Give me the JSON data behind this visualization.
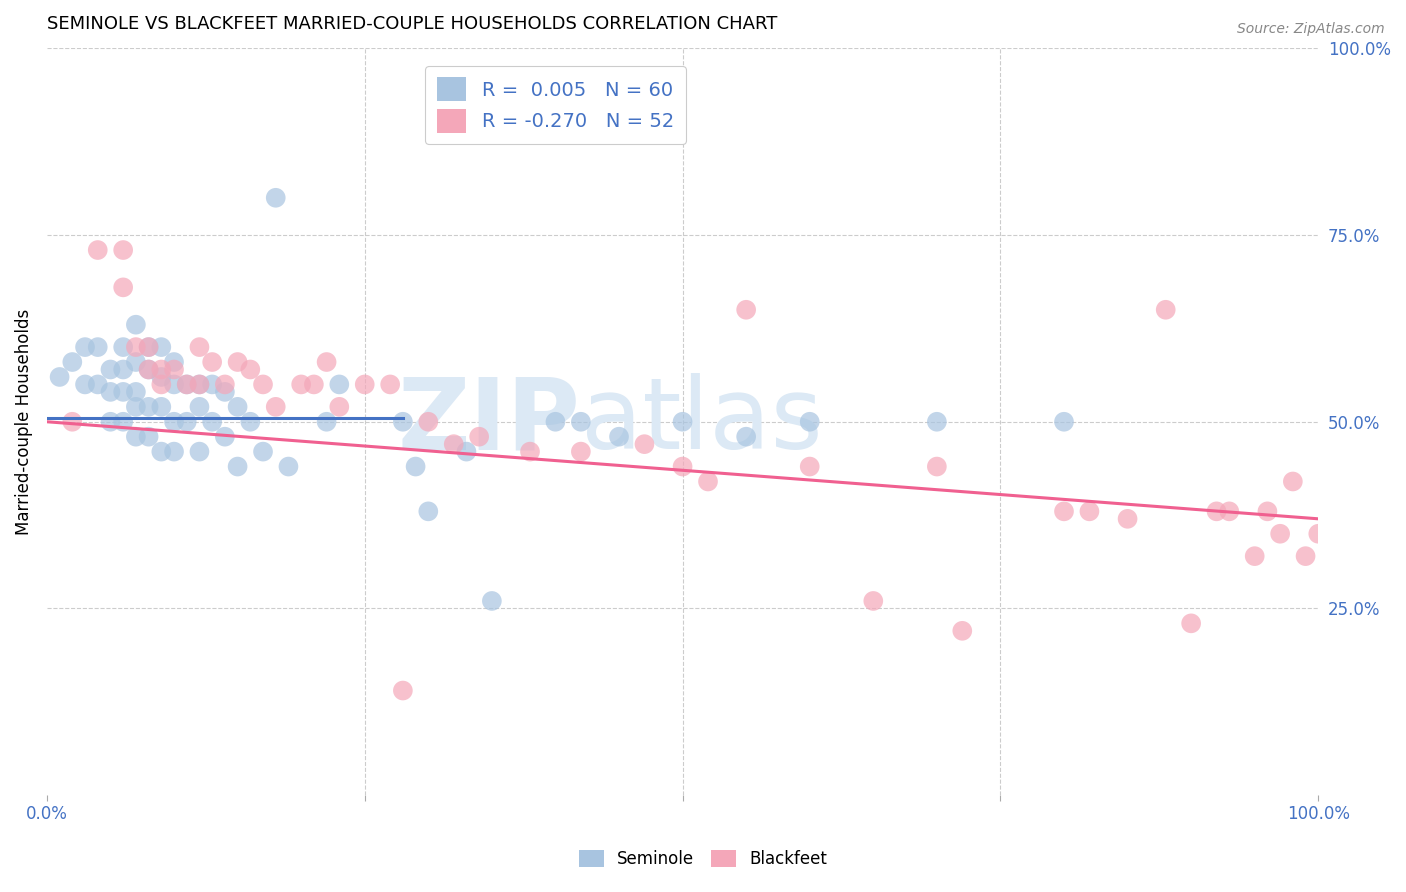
{
  "title": "SEMINOLE VS BLACKFEET MARRIED-COUPLE HOUSEHOLDS CORRELATION CHART",
  "source": "Source: ZipAtlas.com",
  "ylabel": "Married-couple Households",
  "xlim": [
    0,
    1
  ],
  "ylim": [
    0,
    1
  ],
  "xtick_positions": [
    0.0,
    0.25,
    0.5,
    0.75,
    1.0
  ],
  "xtick_labels": [
    "0.0%",
    "",
    "",
    "",
    "100.0%"
  ],
  "ytick_positions_right": [
    1.0,
    0.75,
    0.5,
    0.25
  ],
  "ytick_labels_right": [
    "100.0%",
    "75.0%",
    "50.0%",
    "25.0%"
  ],
  "seminole_R": "0.005",
  "seminole_N": "60",
  "blackfeet_R": "-0.270",
  "blackfeet_N": "52",
  "seminole_color": "#a8c4e0",
  "blackfeet_color": "#f4a7b9",
  "seminole_line_color": "#4472c4",
  "blackfeet_line_color": "#f06090",
  "watermark_zip": "ZIP",
  "watermark_atlas": "atlas",
  "watermark_color": "#dce9f5",
  "background_color": "#ffffff",
  "grid_color": "#cccccc",
  "seminole_x": [
    0.01,
    0.02,
    0.03,
    0.03,
    0.04,
    0.04,
    0.05,
    0.05,
    0.05,
    0.06,
    0.06,
    0.06,
    0.06,
    0.07,
    0.07,
    0.07,
    0.07,
    0.07,
    0.08,
    0.08,
    0.08,
    0.08,
    0.09,
    0.09,
    0.09,
    0.09,
    0.1,
    0.1,
    0.1,
    0.1,
    0.11,
    0.11,
    0.12,
    0.12,
    0.12,
    0.13,
    0.13,
    0.14,
    0.14,
    0.15,
    0.15,
    0.16,
    0.17,
    0.18,
    0.19,
    0.22,
    0.23,
    0.28,
    0.29,
    0.3,
    0.33,
    0.35,
    0.4,
    0.42,
    0.45,
    0.5,
    0.55,
    0.6,
    0.7,
    0.8
  ],
  "seminole_y": [
    0.56,
    0.58,
    0.6,
    0.55,
    0.6,
    0.55,
    0.57,
    0.54,
    0.5,
    0.6,
    0.57,
    0.54,
    0.5,
    0.63,
    0.58,
    0.54,
    0.52,
    0.48,
    0.6,
    0.57,
    0.52,
    0.48,
    0.6,
    0.56,
    0.52,
    0.46,
    0.58,
    0.55,
    0.5,
    0.46,
    0.55,
    0.5,
    0.55,
    0.52,
    0.46,
    0.55,
    0.5,
    0.54,
    0.48,
    0.52,
    0.44,
    0.5,
    0.46,
    0.8,
    0.44,
    0.5,
    0.55,
    0.5,
    0.44,
    0.38,
    0.46,
    0.26,
    0.5,
    0.5,
    0.48,
    0.5,
    0.48,
    0.5,
    0.5,
    0.5
  ],
  "blackfeet_x": [
    0.02,
    0.04,
    0.06,
    0.06,
    0.07,
    0.08,
    0.08,
    0.09,
    0.09,
    0.1,
    0.11,
    0.12,
    0.12,
    0.13,
    0.14,
    0.15,
    0.16,
    0.17,
    0.18,
    0.2,
    0.21,
    0.22,
    0.23,
    0.25,
    0.27,
    0.28,
    0.3,
    0.32,
    0.34,
    0.38,
    0.42,
    0.47,
    0.5,
    0.52,
    0.55,
    0.6,
    0.65,
    0.7,
    0.72,
    0.8,
    0.82,
    0.85,
    0.88,
    0.9,
    0.92,
    0.93,
    0.95,
    0.96,
    0.97,
    0.98,
    0.99,
    1.0
  ],
  "blackfeet_y": [
    0.5,
    0.73,
    0.73,
    0.68,
    0.6,
    0.6,
    0.57,
    0.57,
    0.55,
    0.57,
    0.55,
    0.6,
    0.55,
    0.58,
    0.55,
    0.58,
    0.57,
    0.55,
    0.52,
    0.55,
    0.55,
    0.58,
    0.52,
    0.55,
    0.55,
    0.14,
    0.5,
    0.47,
    0.48,
    0.46,
    0.46,
    0.47,
    0.44,
    0.42,
    0.65,
    0.44,
    0.26,
    0.44,
    0.22,
    0.38,
    0.38,
    0.37,
    0.65,
    0.23,
    0.38,
    0.38,
    0.32,
    0.38,
    0.35,
    0.42,
    0.32,
    0.35
  ],
  "seminole_line_x": [
    0.0,
    0.28
  ],
  "seminole_line_y": [
    0.505,
    0.505
  ],
  "blackfeet_line_x": [
    0.0,
    1.0
  ],
  "blackfeet_line_y": [
    0.5,
    0.37
  ]
}
